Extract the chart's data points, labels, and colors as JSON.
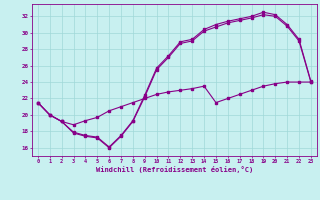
{
  "title": "Windchill (Refroidissement éolien,°C)",
  "bg_color": "#c8f0f0",
  "grid_color": "#a0d8d8",
  "line_color": "#880088",
  "xlim": [
    -0.5,
    23.5
  ],
  "ylim": [
    15.0,
    33.5
  ],
  "xticks": [
    0,
    1,
    2,
    3,
    4,
    5,
    6,
    7,
    8,
    9,
    10,
    11,
    12,
    13,
    14,
    15,
    16,
    17,
    18,
    19,
    20,
    21,
    22,
    23
  ],
  "yticks": [
    16,
    18,
    20,
    22,
    24,
    26,
    28,
    30,
    32
  ],
  "line1_x": [
    0,
    1,
    2,
    3,
    4,
    5,
    6,
    7,
    8,
    9,
    10,
    11,
    12,
    13,
    14,
    15,
    16,
    17,
    18,
    19,
    20,
    21,
    22,
    23
  ],
  "line1_y": [
    21.5,
    20.0,
    19.2,
    17.8,
    17.4,
    17.2,
    16.0,
    17.4,
    19.2,
    22.2,
    25.5,
    27.0,
    28.7,
    29.0,
    30.2,
    30.7,
    31.2,
    31.5,
    31.8,
    32.2,
    32.0,
    30.8,
    29.0,
    24.0
  ],
  "line2_x": [
    0,
    1,
    2,
    3,
    4,
    5,
    6,
    7,
    8,
    9,
    10,
    11,
    12,
    13,
    14,
    15,
    16,
    17,
    18,
    19,
    20,
    21,
    22,
    23
  ],
  "line2_y": [
    21.5,
    20.0,
    19.2,
    17.9,
    17.5,
    17.3,
    16.1,
    17.5,
    19.3,
    22.4,
    25.7,
    27.2,
    28.9,
    29.2,
    30.4,
    31.0,
    31.4,
    31.7,
    32.0,
    32.5,
    32.2,
    31.0,
    29.2,
    24.1
  ],
  "line3_x": [
    0,
    1,
    2,
    3,
    4,
    5,
    6,
    7,
    8,
    9,
    10,
    11,
    12,
    13,
    14,
    15,
    16,
    17,
    18,
    19,
    20,
    21,
    22,
    23
  ],
  "line3_y": [
    21.5,
    20.0,
    19.2,
    18.8,
    19.3,
    19.7,
    20.5,
    21.0,
    21.5,
    22.0,
    22.5,
    22.8,
    23.0,
    23.2,
    23.5,
    21.5,
    22.0,
    22.5,
    23.0,
    23.5,
    23.8,
    24.0,
    24.0,
    24.0
  ]
}
